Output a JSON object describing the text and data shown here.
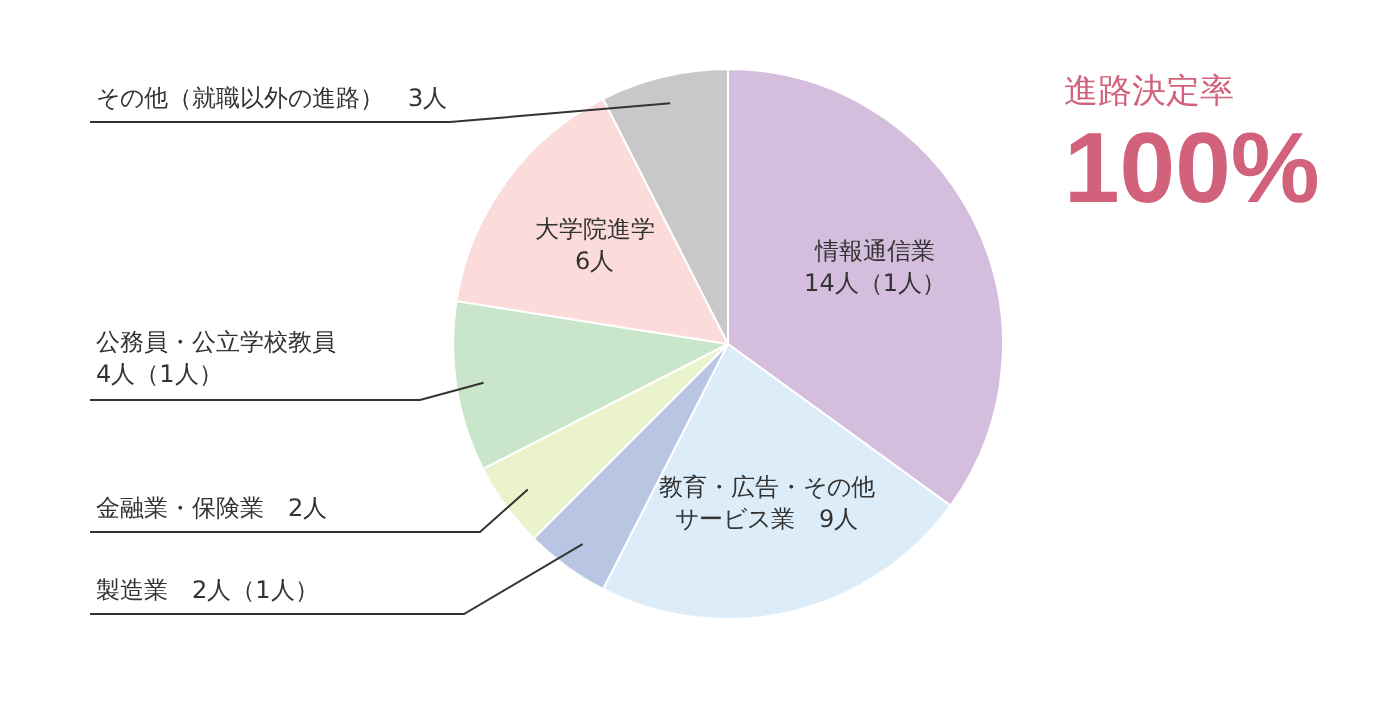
{
  "chart_data": {
    "type": "pie",
    "categories": [
      "情報通信業",
      "教育・広告・その他サービス業",
      "製造業",
      "金融業・保険業",
      "公務員・公立学校教員",
      "大学院進学",
      "その他（就職以外の進路）"
    ],
    "values": [
      14,
      9,
      2,
      2,
      4,
      6,
      3
    ],
    "value_labels": [
      "14人（1人）",
      "9人",
      "2人（1人）",
      "2人",
      "4人（1人）",
      "6人",
      "3人"
    ],
    "colors": [
      "#d5bedd",
      "#dcedf9",
      "#b8c6e4",
      "#ebf3cd",
      "#c9e6cb",
      "#fbdcda",
      "#c8c8c8"
    ],
    "annotations": [
      "進路決定率",
      "100%"
    ],
    "legend": false
  }
}
